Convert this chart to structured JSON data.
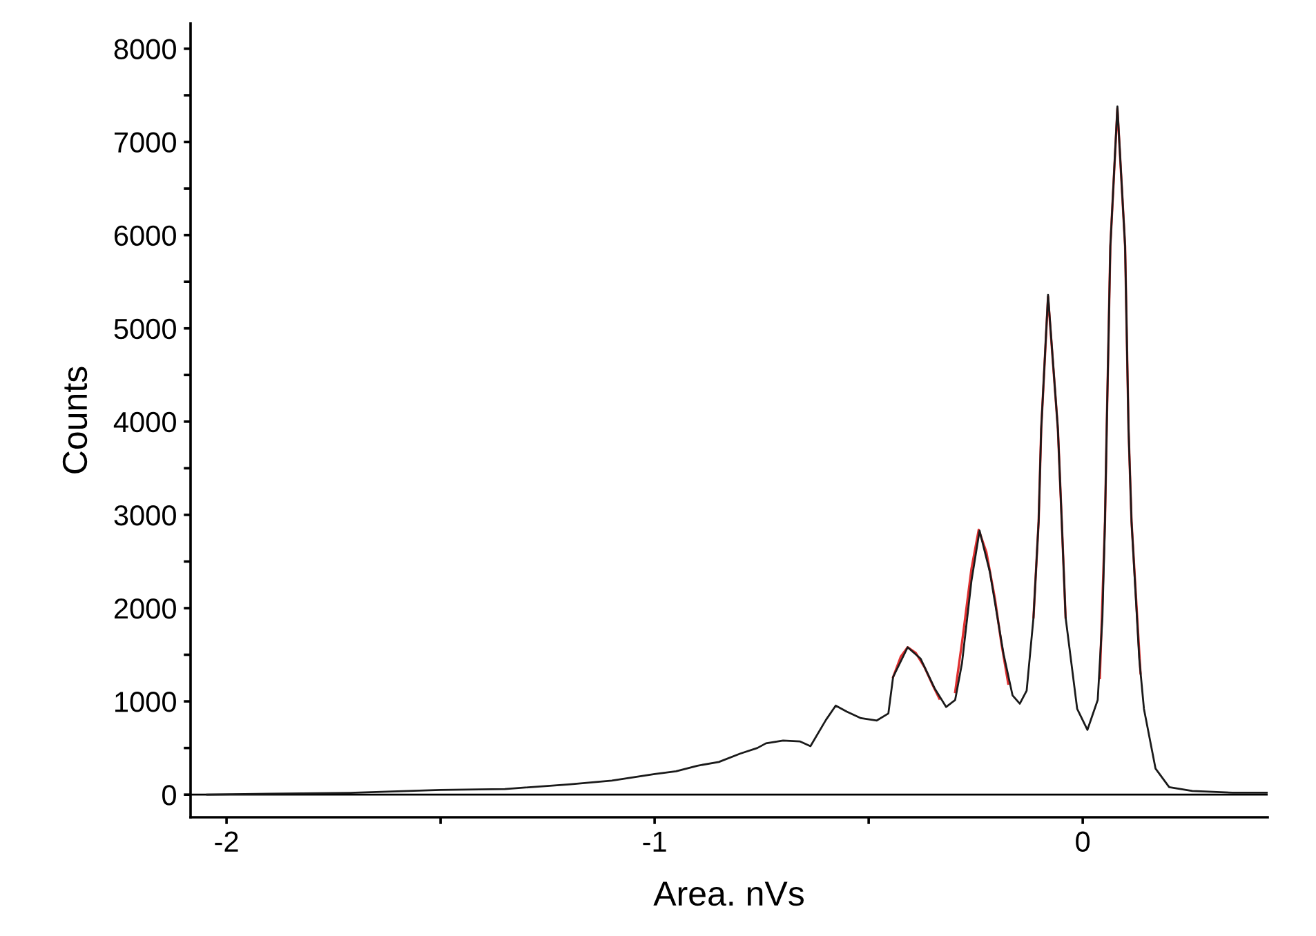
{
  "chart_data": {
    "type": "line",
    "xlabel": "Area. nVs",
    "ylabel": "Counts",
    "xlim": [
      -2.084,
      0.432
    ],
    "ylim": [
      -243,
      8270
    ],
    "xticks": [
      -2,
      {
        "value": -1.5,
        "label": null
      },
      -1,
      {
        "value": -0.5,
        "label": null
      },
      0
    ],
    "yticks": [
      0,
      {
        "value": 500,
        "label": null
      },
      1000,
      {
        "value": 1500,
        "label": null
      },
      2000,
      {
        "value": 2500,
        "label": null
      },
      3000,
      {
        "value": 3500,
        "label": null
      },
      4000,
      {
        "value": 4500,
        "label": null
      },
      5000,
      {
        "value": 5500,
        "label": null
      },
      6000,
      {
        "value": 6500,
        "label": null
      },
      7000,
      {
        "value": 7500,
        "label": null
      },
      8000
    ],
    "grid": false,
    "legend": false,
    "marker": "none",
    "line_style": "solid",
    "ref_lines": [
      {
        "axis": "y",
        "value": 0,
        "label": null,
        "color": "#000000"
      }
    ],
    "series": [
      {
        "color": "#e03030",
        "x": [
          -0.443,
          -0.425,
          -0.409,
          -0.39,
          -0.37,
          -0.35,
          -0.335,
          -0.3,
          -0.298,
          -0.28,
          -0.26,
          -0.243,
          -0.225,
          -0.205,
          -0.19,
          -0.174,
          -0.15,
          -0.115,
          -0.103,
          -0.097,
          -0.081,
          -0.058,
          -0.049,
          -0.04,
          0.0,
          0.04,
          0.052,
          0.056,
          0.0645,
          0.081,
          0.099,
          0.107,
          0.114,
          0.135
        ],
        "values": [
          1260,
          1480,
          1580,
          1520,
          1370,
          1170,
          1030,
          null,
          1100,
          1700,
          2420,
          2840,
          2600,
          2100,
          1620,
          1190,
          null,
          1900,
          2930,
          3920,
          5340,
          3920,
          2930,
          1900,
          null,
          1250,
          2930,
          3920,
          5880,
          7360,
          5880,
          3920,
          2930,
          1300
        ]
      },
      {
        "color": "#1a1a1a",
        "x": [
          -2.045,
          -1.9,
          -1.7,
          -1.5,
          -1.35,
          -1.2,
          -1.1,
          -1.0,
          -0.95,
          -0.9,
          -0.85,
          -0.8,
          -0.76,
          -0.74,
          -0.7,
          -0.66,
          -0.636,
          -0.6,
          -0.577,
          -0.551,
          -0.518,
          -0.481,
          -0.454,
          -0.443,
          -0.409,
          -0.379,
          -0.346,
          -0.319,
          -0.298,
          -0.282,
          -0.26,
          -0.241,
          -0.217,
          -0.185,
          -0.164,
          -0.147,
          -0.131,
          -0.115,
          -0.103,
          -0.097,
          -0.081,
          -0.058,
          -0.049,
          -0.04,
          -0.013,
          0.011,
          0.035,
          0.046,
          0.052,
          0.056,
          0.0645,
          0.081,
          0.099,
          0.107,
          0.114,
          0.132,
          0.143,
          0.17,
          0.202,
          0.256,
          0.35,
          0.43
        ],
        "values": [
          0,
          10,
          20,
          50,
          60,
          110,
          150,
          220,
          250,
          310,
          350,
          440,
          500,
          550,
          580,
          570,
          520,
          800,
          955,
          890,
          820,
          795,
          870,
          1260,
          1580,
          1460,
          1140,
          940,
          1015,
          1410,
          2290,
          2830,
          2390,
          1510,
          1065,
          975,
          1115,
          1900,
          2930,
          3920,
          5360,
          3920,
          2930,
          1900,
          920,
          695,
          1015,
          1900,
          2930,
          3920,
          5880,
          7380,
          5880,
          3920,
          2930,
          1460,
          920,
          280,
          80,
          40,
          20,
          20
        ]
      }
    ]
  }
}
